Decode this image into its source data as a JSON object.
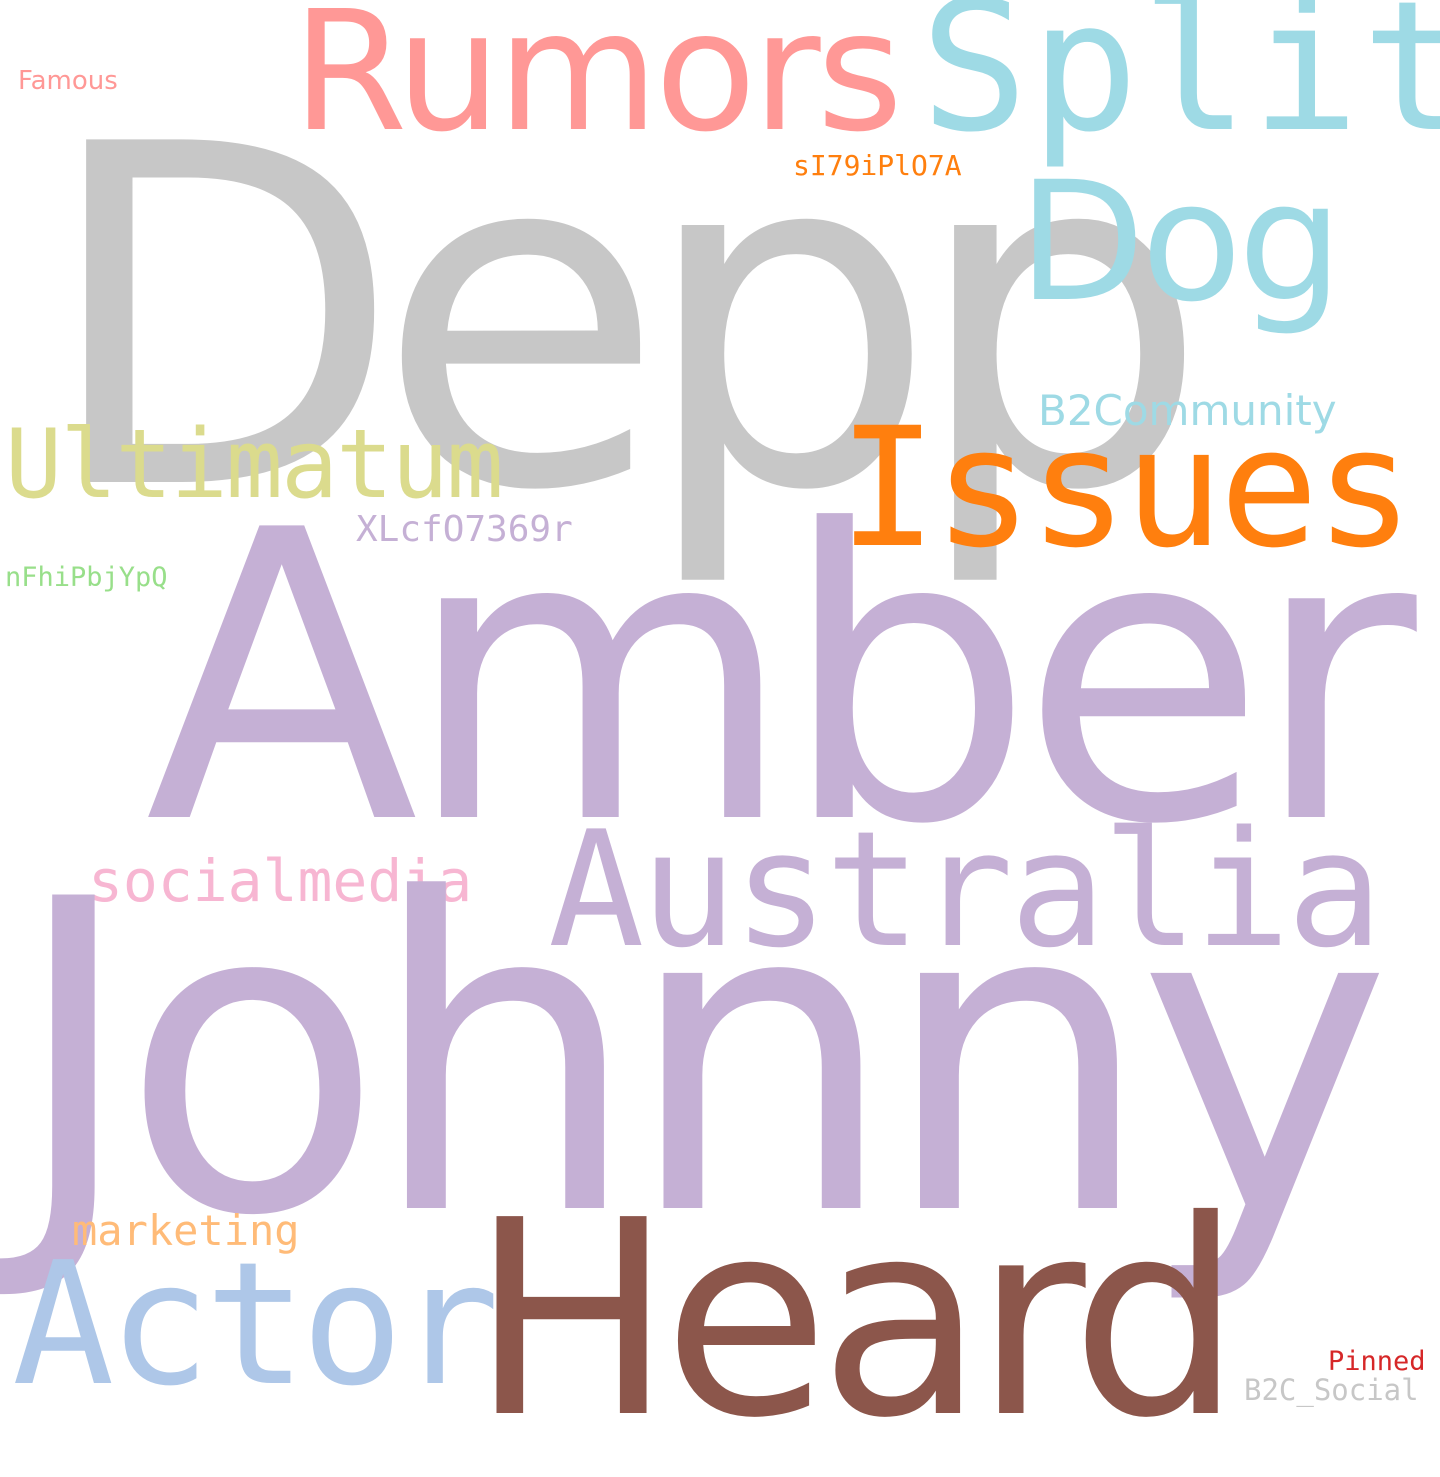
{
  "word_cloud": {
    "background": "#ffffff",
    "words": {
      "depp": {
        "text": "Depp",
        "color": "#c7c7c7"
      },
      "amber": {
        "text": "Amber",
        "color": "#c5b0d5"
      },
      "johnny": {
        "text": "Johnny",
        "color": "#c5b0d5"
      },
      "heard": {
        "text": "Heard",
        "color": "#8c564b"
      },
      "australia": {
        "text": "Australia",
        "color": "#c5b0d5"
      },
      "actor": {
        "text": "Actor",
        "color": "#aec7e8"
      },
      "issues": {
        "text": "Issues",
        "color": "#ff7f0e"
      },
      "rumors": {
        "text": "Rumors",
        "color": "#ff9896"
      },
      "split": {
        "text": "Split",
        "color": "#9edae5"
      },
      "dog": {
        "text": "Dog",
        "color": "#9edae5"
      },
      "ultimatum": {
        "text": "Ultimatum",
        "color": "#dbdb8d"
      },
      "socialmedia": {
        "text": "socialmedia",
        "color": "#f7b6d2"
      },
      "marketing": {
        "text": "marketing",
        "color": "#ffbb78"
      },
      "b2community": {
        "text": "B2Community",
        "color": "#9edae5"
      },
      "xlcf": {
        "text": "XLcfO7369r",
        "color": "#c5b0d5"
      },
      "si79": {
        "text": "sI79iPlO7A",
        "color": "#ff7f0e"
      },
      "nfhi": {
        "text": "nFhiPbjYpQ",
        "color": "#98df8a"
      },
      "famous": {
        "text": "Famous",
        "color": "#ff9896"
      },
      "pinned": {
        "text": "Pinned",
        "color": "#d62728"
      },
      "b2c_social": {
        "text": "B2C_Social",
        "color": "#c7c7c7"
      }
    }
  }
}
